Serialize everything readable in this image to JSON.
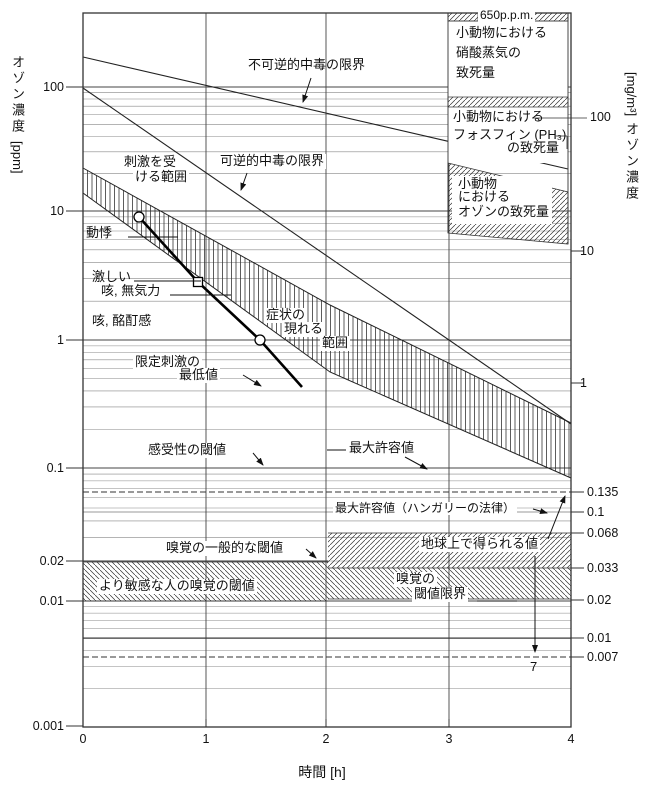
{
  "figure": {
    "x_axis": {
      "title": "時間 [h]",
      "ticks": [
        "0",
        "1",
        "2",
        "3",
        "4"
      ]
    },
    "y_axis_left": {
      "title": "オゾン濃度",
      "unit": "[ppm]",
      "ticks": [
        "100",
        "10",
        "1",
        "0.1",
        "0.02",
        "0.01",
        "0.001"
      ]
    },
    "y_axis_right": {
      "title": "オゾン濃度",
      "unit": "[mg/m³]",
      "ticks": [
        "100",
        "10",
        "1",
        "0.135",
        "0.1",
        "0.068",
        "0.033",
        "0.02",
        "0.01",
        "0.007"
      ]
    },
    "annotations": {
      "irreversible": "不可逆的中毒の限界",
      "reversible": "可逆的中毒の限界",
      "irritation_l1": "刺激を受",
      "irritation_l2": "ける範囲",
      "palpitations": "動悸",
      "severe_l1": "激しい",
      "severe_l2": "咳, 無気力",
      "cough": "咳, 酩酊感",
      "symptoms_l1": "症状の",
      "symptoms_l2": "現れる",
      "symptoms_l3": "範囲",
      "limited_l1": "限定刺激の",
      "limited_l2": "最低値",
      "sensitivity": "感受性の閾値",
      "max_allowable": "最大許容値",
      "max_allowable_hungary": "最大許容値（ハンガリーの法律）",
      "earth_value": "地球上で得られる値",
      "seven": "7",
      "smell_general": "嗅覚の一般的な閾値",
      "smell_sensitive": "より敏感な人の嗅覚の閾値",
      "smell_limit_l1": "嗅覚の",
      "smell_limit_l2": "閾値限界"
    },
    "boxes": {
      "nitric": {
        "badge": "650p.p.m.",
        "l1": "小動物における",
        "l2": "硝酸蒸気の",
        "l3": "致死量"
      },
      "phosphine": {
        "l1": "小動物における",
        "l2": "フォスフィン (PH₃)",
        "l3": "の致死量"
      },
      "ozone_lethal": {
        "l1": "小動物",
        "l2": "における",
        "l3": "オゾンの致死量"
      }
    }
  },
  "chart_data": {
    "type": "line",
    "title": "",
    "xlabel": "時間 [h]",
    "x_range": [
      0,
      4
    ],
    "ylabel_left": "オゾン濃度 [ppm]",
    "ylabel_right": "オゾン濃度 [mg/m³]",
    "y_scale": "log",
    "y_range_ppm": [
      0.001,
      300
    ],
    "x_gridlines": [
      1,
      2,
      3
    ],
    "grid": "log-minor horizontal lines per decade",
    "left_tick_values_ppm": [
      100,
      10,
      1,
      0.1,
      0.02,
      0.01,
      0.001
    ],
    "right_tick_values_mg_m3": [
      100,
      10,
      1,
      0.135,
      0.1,
      0.068,
      0.033,
      0.02,
      0.01,
      0.007
    ],
    "series": [
      {
        "name": "不可逆的中毒の限界",
        "unit": "ppm",
        "points": [
          [
            0,
            160
          ],
          [
            4,
            22
          ]
        ]
      },
      {
        "name": "可逆的中毒の限界",
        "unit": "ppm",
        "points": [
          [
            0,
            95
          ],
          [
            4,
            0.25
          ]
        ]
      },
      {
        "name": "限定刺激の最低値",
        "unit": "ppm",
        "markers": [
          "circle",
          "square",
          "circle"
        ],
        "points": [
          [
            0.45,
            9.3
          ],
          [
            0.97,
            2.9
          ],
          [
            1.5,
            1.0
          ],
          [
            1.84,
            0.43
          ]
        ]
      }
    ],
    "bands": [
      {
        "name": "刺激を受ける範囲 / 症状の現れる範囲",
        "unit": "ppm",
        "hatch": "vertical",
        "upper": [
          [
            0,
            22
          ],
          [
            2.1,
            1.9
          ],
          [
            4,
            0.22
          ]
        ],
        "lower": [
          [
            0,
            14
          ],
          [
            2.1,
            0.56
          ],
          [
            4,
            0.085
          ]
        ]
      },
      {
        "name": "より敏感な人の嗅覚の閾値",
        "unit": "ppm",
        "x_range": [
          0,
          2
        ],
        "y_range": [
          0.01,
          0.02
        ],
        "hatch": "diagonal"
      },
      {
        "name": "嗅覚の閾値限界",
        "unit": "mg/m³",
        "x_range": [
          2,
          4
        ],
        "y_range": [
          0.02,
          0.033
        ],
        "hatch": "diagonal"
      },
      {
        "name": "地球上で得られる値",
        "unit": "mg/m³",
        "x_range": [
          2,
          4
        ],
        "y_range": [
          0.033,
          0.068
        ],
        "hatch": "diagonal",
        "arrows_to_mg_m3": [
          0.135,
          0.007
        ]
      },
      {
        "name": "小動物における硝酸蒸気の致死量",
        "value": "650 p.p.m.",
        "x_range": [
          3,
          4
        ]
      },
      {
        "name": "小動物におけるフォスフィン (PH₃) の致死量",
        "unit": "mg/m³",
        "x_range": [
          3,
          4
        ],
        "y_approx": 100
      },
      {
        "name": "小動物におけるオゾンの致死量",
        "unit": "mg/m³",
        "x_range": [
          3,
          4
        ],
        "y_range": [
          15,
          40
        ]
      }
    ],
    "threshold_lines": [
      {
        "name": "感受性の閾値",
        "value_ppm": 0.1
      },
      {
        "name": "最大許容値",
        "value_ppm": 0.1
      },
      {
        "name": "最大許容値（ハンガリーの法律）",
        "value_mg_m3": 0.1
      },
      {
        "name": "嗅覚の一般的な閾値",
        "value_ppm": 0.02
      },
      {
        "name": "dashed_reference_upper",
        "value_mg_m3": 0.135,
        "style": "dashed"
      },
      {
        "name": "dashed_reference_lower",
        "value_mg_m3": 0.007,
        "style": "dashed",
        "label": "7"
      }
    ],
    "symptom_labels_ppm": [
      {
        "label": "動悸",
        "value": 7
      },
      {
        "label": "激しい咳, 無気力",
        "value": 3
      },
      {
        "label": "咳, 酩酊感",
        "value": 1.5
      }
    ]
  }
}
